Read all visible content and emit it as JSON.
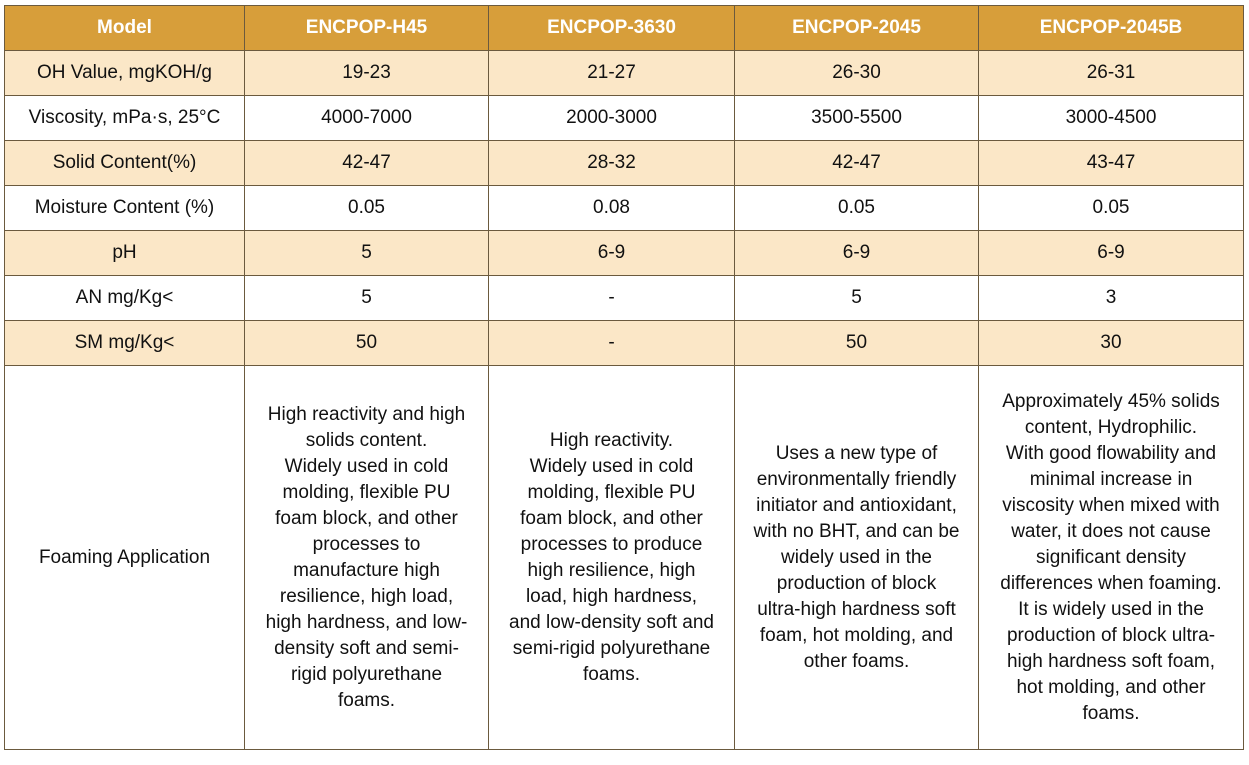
{
  "table": {
    "headers": [
      "Model",
      "ENCPOP-H45",
      "ENCPOP-3630",
      "ENCPOP-2045",
      "ENCPOP-2045B"
    ],
    "rows": [
      {
        "label": "OH Value, mgKOH/g",
        "values": [
          "19-23",
          "21-27",
          "26-30",
          "26-31"
        ]
      },
      {
        "label": "Viscosity, mPa·s, 25°C",
        "values": [
          "4000-7000",
          "2000-3000",
          "3500-5500",
          "3000-4500"
        ]
      },
      {
        "label": "Solid Content(%)",
        "values": [
          "42-47",
          "28-32",
          "42-47",
          "43-47"
        ]
      },
      {
        "label": "Moisture Content (%)",
        "values": [
          "0.05",
          "0.08",
          "0.05",
          "0.05"
        ]
      },
      {
        "label": "pH",
        "values": [
          "5",
          "6-9",
          "6-9",
          "6-9"
        ]
      },
      {
        "label": "AN mg/Kg<",
        "values": [
          "5",
          "-",
          "5",
          "3"
        ]
      },
      {
        "label": "SM mg/Kg<",
        "values": [
          "50",
          "-",
          "50",
          "30"
        ]
      }
    ],
    "application": {
      "label": "Foaming Application",
      "values": [
        "High reactivity and high\nsolids content.\nWidely used in cold\nmolding, flexible PU\nfoam block, and other\nprocesses to\nmanufacture high\nresilience, high load,\nhigh hardness, and low-\ndensity soft and semi-\nrigid polyurethane\nfoams.",
        "High reactivity.\nWidely used in cold\nmolding,  flexible PU\nfoam block, and other\nprocesses to produce\nhigh resilience, high\nload, high hardness,\nand low-density soft and\nsemi-rigid polyurethane\nfoams.",
        "Uses a new type of\nenvironmentally friendly\ninitiator and antioxidant,\nwith no BHT, and can be\nwidely used in the\nproduction of block\nultra-high hardness soft\nfoam, hot molding, and\nother foams.",
        "Approximately 45% solids\ncontent, Hydrophilic.\nWith good flowability and\nminimal increase in\nviscosity when mixed with\nwater, it does not cause\nsignificant density\ndifferences when foaming.\nIt is widely used in the\nproduction of block ultra-\nhigh hardness soft foam,\nhot molding, and other\nfoams."
      ]
    }
  }
}
